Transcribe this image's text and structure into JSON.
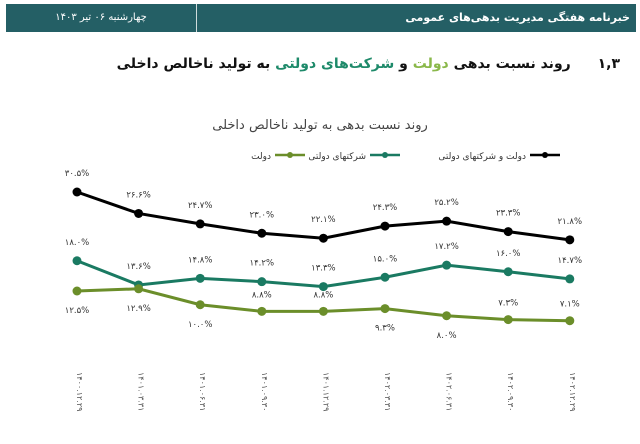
{
  "header": {
    "title": "خبرنامه هفتگی مدیریت بدهی‌های عمومی",
    "date": "چهارشنبه ۰۶ تیر ۱۴۰۳"
  },
  "section": {
    "number": "۱,۳",
    "part1": "روند نسبت بدهی",
    "part2": "دولت",
    "part3": "و",
    "part4": "شرکت‌های دولتی",
    "part5": "به تولید ناخالص داخلی"
  },
  "chart_data": {
    "type": "line",
    "title": "روند نسبت بدهی به تولید ناخالص داخلی",
    "categories": [
      "۱۴۰۰.۱۲.۲۹",
      "۱۴۰۱.۰۳.۳۱",
      "۱۴۰۱.۰۶.۳۱",
      "۱۴۰۱.۰۹.۳۰",
      "۱۴۰۱.۱۲.۲۹",
      "۱۴۰۲.۰۳.۳۱",
      "۱۴۰۲.۰۶.۳۱",
      "۱۴۰۲.۰۹.۳۰",
      "۱۴۰۲.۱۲.۲۹"
    ],
    "legend_position": "top",
    "grid": false,
    "series": [
      {
        "name": "دولت و شرکتهای دولتی",
        "color": "#000000",
        "values": [
          30.5,
          26.6,
          24.7,
          23.0,
          22.1,
          24.3,
          25.2,
          23.3,
          21.8
        ],
        "labels": [
          "۳۰.۵%",
          "۲۶.۶%",
          "۲۴.۷%",
          "۲۳.۰%",
          "۲۲.۱%",
          "۲۴.۳%",
          "۲۵.۲%",
          "۲۳.۳%",
          "۲۱.۸%"
        ]
      },
      {
        "name": "شرکتهای دولتی",
        "color": "#1a7a62",
        "values": [
          18.0,
          13.6,
          14.8,
          14.2,
          13.3,
          15.0,
          17.2,
          16.0,
          14.7
        ],
        "labels": [
          "۱۸.۰%",
          "۱۳.۶%",
          "۱۴.۸%",
          "۱۴.۲%",
          "۱۳.۳%",
          "۱۵.۰%",
          "۱۷.۲%",
          "۱۶.۰%",
          "۱۴.۷%"
        ]
      },
      {
        "name": "دولت",
        "color": "#6b8e2a",
        "values": [
          12.5,
          12.9,
          10.0,
          8.8,
          8.8,
          9.3,
          8.0,
          7.3,
          7.1
        ],
        "labels": [
          "۱۲.۵%",
          "۱۲.۹%",
          "۱۰.۰%",
          "۸.۸%",
          "۸.۸%",
          "۹.۳%",
          "۸.۰%",
          "۷.۳%",
          "۷.۱%"
        ]
      }
    ]
  }
}
